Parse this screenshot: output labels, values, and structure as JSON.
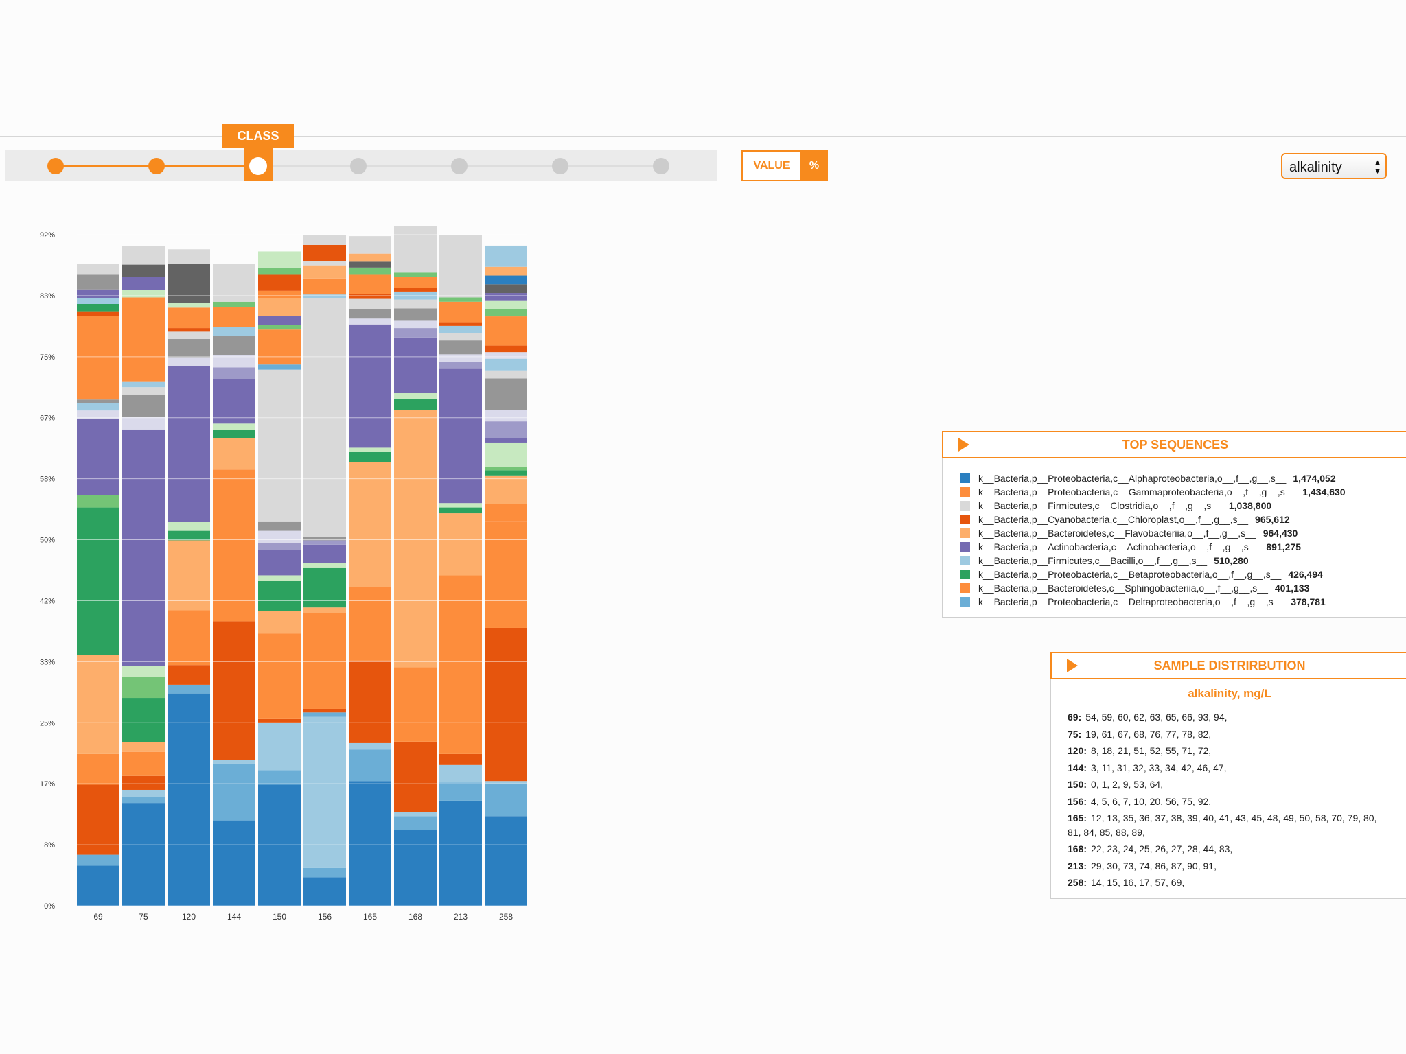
{
  "controls": {
    "class_label": "CLASS",
    "value_label": "VALUE",
    "percent_label": "%",
    "select_value": "alkalinity",
    "slider_levels": 7,
    "slider_selected_index": 2
  },
  "colors": {
    "accent": "#f78a1d",
    "dark_blue": "#2b7fc0",
    "light_blue": "#9ecae1",
    "mid_blue": "#6baed6",
    "orange": "#fd8d3c",
    "dark_orange": "#e6550d",
    "light_orange": "#fdae6b",
    "green": "#2ca25f",
    "light_green": "#74c476",
    "pale_green": "#c7e9c0",
    "purple": "#756bb1",
    "light_purple": "#9e9ac8",
    "pale_purple": "#dadaeb",
    "gray": "#969696",
    "dark_gray": "#636363",
    "light_gray": "#d9d9d9"
  },
  "chart_data": {
    "type": "bar",
    "stacked": true,
    "categories": [
      "69",
      "75",
      "120",
      "144",
      "150",
      "156",
      "165",
      "168",
      "213",
      "258"
    ],
    "y_ticks": [
      "0%",
      "8%",
      "17%",
      "25%",
      "33%",
      "42%",
      "50%",
      "58%",
      "67%",
      "75%",
      "83%",
      "92%"
    ],
    "ylim": [
      0,
      92
    ],
    "xlabel": "",
    "ylabel": "",
    "title": "",
    "gridlines": true,
    "stack_colors_bottom_to_top": "per-column segment lists (percent values)",
    "columns": [
      {
        "category": "69",
        "segments": [
          {
            "v": 5.5,
            "c": "#2b7fc0"
          },
          {
            "v": 1.5,
            "c": "#6baed6"
          },
          {
            "v": 9.6,
            "c": "#e6550d"
          },
          {
            "v": 4.2,
            "c": "#fd8d3c"
          },
          {
            "v": 13.6,
            "c": "#fdae6b"
          },
          {
            "v": 20.2,
            "c": "#2ca25f"
          },
          {
            "v": 1.7,
            "c": "#74c476"
          },
          {
            "v": 10.4,
            "c": "#756bb1"
          },
          {
            "v": 1.2,
            "c": "#dadaeb"
          },
          {
            "v": 1.0,
            "c": "#9ecae1"
          },
          {
            "v": 0.5,
            "c": "#969696"
          },
          {
            "v": 11.5,
            "c": "#fd8d3c"
          },
          {
            "v": 0.6,
            "c": "#e6550d"
          },
          {
            "v": 1.0,
            "c": "#2ca25f"
          },
          {
            "v": 0.8,
            "c": "#9ecae1"
          },
          {
            "v": 1.2,
            "c": "#756bb1"
          },
          {
            "v": 2.0,
            "c": "#969696"
          },
          {
            "v": 1.5,
            "c": "#d9d9d9"
          }
        ]
      },
      {
        "category": "75",
        "segments": [
          {
            "v": 14.1,
            "c": "#2b7fc0"
          },
          {
            "v": 0.8,
            "c": "#6baed6"
          },
          {
            "v": 1.0,
            "c": "#9ecae1"
          },
          {
            "v": 1.9,
            "c": "#e6550d"
          },
          {
            "v": 3.3,
            "c": "#fd8d3c"
          },
          {
            "v": 1.3,
            "c": "#fdae6b"
          },
          {
            "v": 6.1,
            "c": "#2ca25f"
          },
          {
            "v": 2.9,
            "c": "#74c476"
          },
          {
            "v": 1.5,
            "c": "#c7e9c0"
          },
          {
            "v": 32.4,
            "c": "#756bb1"
          },
          {
            "v": 1.7,
            "c": "#dadaeb"
          },
          {
            "v": 3.1,
            "c": "#969696"
          },
          {
            "v": 1.0,
            "c": "#d9d9d9"
          },
          {
            "v": 0.8,
            "c": "#9ecae1"
          },
          {
            "v": 11.5,
            "c": "#fd8d3c"
          },
          {
            "v": 1.0,
            "c": "#c7e9c0"
          },
          {
            "v": 1.8,
            "c": "#756bb1"
          },
          {
            "v": 1.7,
            "c": "#636363"
          },
          {
            "v": 2.5,
            "c": "#d9d9d9"
          }
        ]
      },
      {
        "category": "120",
        "segments": [
          {
            "v": 29.1,
            "c": "#2b7fc0"
          },
          {
            "v": 1.2,
            "c": "#6baed6"
          },
          {
            "v": 2.7,
            "c": "#e6550d"
          },
          {
            "v": 7.5,
            "c": "#fd8d3c"
          },
          {
            "v": 9.6,
            "c": "#fdae6b"
          },
          {
            "v": 1.3,
            "c": "#2ca25f"
          },
          {
            "v": 1.2,
            "c": "#c7e9c0"
          },
          {
            "v": 21.4,
            "c": "#756bb1"
          },
          {
            "v": 1.2,
            "c": "#dadaeb"
          },
          {
            "v": 2.5,
            "c": "#969696"
          },
          {
            "v": 1.0,
            "c": "#d9d9d9"
          },
          {
            "v": 0.5,
            "c": "#e6550d"
          },
          {
            "v": 2.8,
            "c": "#fd8d3c"
          },
          {
            "v": 0.6,
            "c": "#c7e9c0"
          },
          {
            "v": 5.4,
            "c": "#636363"
          },
          {
            "v": 2.0,
            "c": "#d9d9d9"
          }
        ]
      },
      {
        "category": "144",
        "segments": [
          {
            "v": 11.7,
            "c": "#2b7fc0"
          },
          {
            "v": 7.8,
            "c": "#6baed6"
          },
          {
            "v": 0.5,
            "c": "#9ecae1"
          },
          {
            "v": 19.0,
            "c": "#e6550d"
          },
          {
            "v": 20.8,
            "c": "#fd8d3c"
          },
          {
            "v": 4.3,
            "c": "#fdae6b"
          },
          {
            "v": 1.1,
            "c": "#2ca25f"
          },
          {
            "v": 0.9,
            "c": "#c7e9c0"
          },
          {
            "v": 6.1,
            "c": "#756bb1"
          },
          {
            "v": 1.6,
            "c": "#9e9ac8"
          },
          {
            "v": 1.7,
            "c": "#dadaeb"
          },
          {
            "v": 2.6,
            "c": "#969696"
          },
          {
            "v": 1.2,
            "c": "#9ecae1"
          },
          {
            "v": 2.8,
            "c": "#fd8d3c"
          },
          {
            "v": 0.7,
            "c": "#74c476"
          },
          {
            "v": 5.2,
            "c": "#d9d9d9"
          }
        ]
      },
      {
        "category": "150",
        "segments": [
          {
            "v": 16.6,
            "c": "#2b7fc0"
          },
          {
            "v": 2.0,
            "c": "#6baed6"
          },
          {
            "v": 6.5,
            "c": "#9ecae1"
          },
          {
            "v": 0.5,
            "c": "#e6550d"
          },
          {
            "v": 11.7,
            "c": "#fd8d3c"
          },
          {
            "v": 3.1,
            "c": "#fdae6b"
          },
          {
            "v": 4.1,
            "c": "#2ca25f"
          },
          {
            "v": 0.8,
            "c": "#c7e9c0"
          },
          {
            "v": 3.5,
            "c": "#756bb1"
          },
          {
            "v": 0.9,
            "c": "#9e9ac8"
          },
          {
            "v": 1.7,
            "c": "#dadaeb"
          },
          {
            "v": 1.3,
            "c": "#969696"
          },
          {
            "v": 20.8,
            "c": "#d9d9d9"
          },
          {
            "v": 0.7,
            "c": "#6baed6"
          },
          {
            "v": 4.8,
            "c": "#fd8d3c"
          },
          {
            "v": 0.6,
            "c": "#74c476"
          },
          {
            "v": 1.3,
            "c": "#756bb1"
          },
          {
            "v": 2.4,
            "c": "#fdae6b"
          },
          {
            "v": 1.0,
            "c": "#fd8d3c"
          },
          {
            "v": 2.2,
            "c": "#e6550d"
          },
          {
            "v": 1.0,
            "c": "#74c476"
          },
          {
            "v": 2.2,
            "c": "#c7e9c0"
          }
        ]
      },
      {
        "category": "156",
        "segments": [
          {
            "v": 3.9,
            "c": "#2b7fc0"
          },
          {
            "v": 1.3,
            "c": "#6baed6"
          },
          {
            "v": 20.7,
            "c": "#9ecae1"
          },
          {
            "v": 0.6,
            "c": "#6baed6"
          },
          {
            "v": 0.5,
            "c": "#e6550d"
          },
          {
            "v": 13.1,
            "c": "#fd8d3c"
          },
          {
            "v": 0.8,
            "c": "#fdae6b"
          },
          {
            "v": 5.4,
            "c": "#2ca25f"
          },
          {
            "v": 0.7,
            "c": "#c7e9c0"
          },
          {
            "v": 2.5,
            "c": "#756bb1"
          },
          {
            "v": 0.6,
            "c": "#9e9ac8"
          },
          {
            "v": 0.5,
            "c": "#969696"
          },
          {
            "v": 32.7,
            "c": "#d9d9d9"
          },
          {
            "v": 0.5,
            "c": "#9ecae1"
          },
          {
            "v": 2.2,
            "c": "#fd8d3c"
          },
          {
            "v": 1.8,
            "c": "#fdae6b"
          },
          {
            "v": 0.6,
            "c": "#d9d9d9"
          },
          {
            "v": 2.2,
            "c": "#e6550d"
          },
          {
            "v": 1.4,
            "c": "#d9d9d9"
          }
        ]
      },
      {
        "category": "165",
        "segments": [
          {
            "v": 17.1,
            "c": "#2b7fc0"
          },
          {
            "v": 4.3,
            "c": "#6baed6"
          },
          {
            "v": 0.9,
            "c": "#9ecae1"
          },
          {
            "v": 11.3,
            "c": "#e6550d"
          },
          {
            "v": 10.1,
            "c": "#fd8d3c"
          },
          {
            "v": 17.1,
            "c": "#fdae6b"
          },
          {
            "v": 1.4,
            "c": "#2ca25f"
          },
          {
            "v": 0.6,
            "c": "#c7e9c0"
          },
          {
            "v": 16.9,
            "c": "#756bb1"
          },
          {
            "v": 0.8,
            "c": "#dadaeb"
          },
          {
            "v": 1.3,
            "c": "#969696"
          },
          {
            "v": 1.4,
            "c": "#d9d9d9"
          },
          {
            "v": 0.7,
            "c": "#e6550d"
          },
          {
            "v": 2.6,
            "c": "#fd8d3c"
          },
          {
            "v": 1.0,
            "c": "#74c476"
          },
          {
            "v": 0.8,
            "c": "#636363"
          },
          {
            "v": 1.1,
            "c": "#fdae6b"
          },
          {
            "v": 2.4,
            "c": "#d9d9d9"
          }
        ]
      },
      {
        "category": "168",
        "segments": [
          {
            "v": 10.4,
            "c": "#2b7fc0"
          },
          {
            "v": 1.9,
            "c": "#6baed6"
          },
          {
            "v": 0.5,
            "c": "#9ecae1"
          },
          {
            "v": 9.7,
            "c": "#e6550d"
          },
          {
            "v": 10.2,
            "c": "#fd8d3c"
          },
          {
            "v": 35.3,
            "c": "#fdae6b"
          },
          {
            "v": 1.5,
            "c": "#2ca25f"
          },
          {
            "v": 0.8,
            "c": "#c7e9c0"
          },
          {
            "v": 7.6,
            "c": "#756bb1"
          },
          {
            "v": 1.3,
            "c": "#9e9ac8"
          },
          {
            "v": 1.0,
            "c": "#dadaeb"
          },
          {
            "v": 1.7,
            "c": "#969696"
          },
          {
            "v": 1.2,
            "c": "#d9d9d9"
          },
          {
            "v": 1.1,
            "c": "#9ecae1"
          },
          {
            "v": 0.5,
            "c": "#e6550d"
          },
          {
            "v": 1.5,
            "c": "#fd8d3c"
          },
          {
            "v": 0.6,
            "c": "#74c476"
          },
          {
            "v": 6.5,
            "c": "#d9d9d9"
          }
        ]
      },
      {
        "category": "213",
        "segments": [
          {
            "v": 14.4,
            "c": "#2b7fc0"
          },
          {
            "v": 2.5,
            "c": "#6baed6"
          },
          {
            "v": 2.4,
            "c": "#9ecae1"
          },
          {
            "v": 1.5,
            "c": "#e6550d"
          },
          {
            "v": 24.5,
            "c": "#fd8d3c"
          },
          {
            "v": 8.5,
            "c": "#fdae6b"
          },
          {
            "v": 0.8,
            "c": "#2ca25f"
          },
          {
            "v": 0.6,
            "c": "#c7e9c0"
          },
          {
            "v": 18.4,
            "c": "#756bb1"
          },
          {
            "v": 1.0,
            "c": "#9e9ac8"
          },
          {
            "v": 1.0,
            "c": "#dadaeb"
          },
          {
            "v": 1.9,
            "c": "#969696"
          },
          {
            "v": 1.0,
            "c": "#d9d9d9"
          },
          {
            "v": 1.0,
            "c": "#9ecae1"
          },
          {
            "v": 0.5,
            "c": "#e6550d"
          },
          {
            "v": 2.8,
            "c": "#fd8d3c"
          },
          {
            "v": 0.6,
            "c": "#74c476"
          },
          {
            "v": 8.6,
            "c": "#d9d9d9"
          }
        ]
      },
      {
        "category": "258",
        "segments": [
          {
            "v": 12.3,
            "c": "#2b7fc0"
          },
          {
            "v": 4.4,
            "c": "#6baed6"
          },
          {
            "v": 0.4,
            "c": "#9ecae1"
          },
          {
            "v": 21.0,
            "c": "#e6550d"
          },
          {
            "v": 14.6,
            "c": "#fd8d3c"
          },
          {
            "v": 2.4,
            "c": "#fd8d3c"
          },
          {
            "v": 3.9,
            "c": "#fdae6b"
          },
          {
            "v": 0.7,
            "c": "#2ca25f"
          },
          {
            "v": 0.5,
            "c": "#74c476"
          },
          {
            "v": 3.3,
            "c": "#c7e9c0"
          },
          {
            "v": 0.6,
            "c": "#756bb1"
          },
          {
            "v": 2.3,
            "c": "#9e9ac8"
          },
          {
            "v": 1.6,
            "c": "#dadaeb"
          },
          {
            "v": 4.3,
            "c": "#969696"
          },
          {
            "v": 1.1,
            "c": "#d9d9d9"
          },
          {
            "v": 1.6,
            "c": "#9ecae1"
          },
          {
            "v": 0.9,
            "c": "#dadaeb"
          },
          {
            "v": 0.9,
            "c": "#e6550d"
          },
          {
            "v": 4.0,
            "c": "#fd8d3c"
          },
          {
            "v": 1.0,
            "c": "#74c476"
          },
          {
            "v": 1.2,
            "c": "#c7e9c0"
          },
          {
            "v": 1.0,
            "c": "#756bb1"
          },
          {
            "v": 1.2,
            "c": "#636363"
          },
          {
            "v": 1.2,
            "c": "#2b7fc0"
          },
          {
            "v": 1.2,
            "c": "#fdae6b"
          },
          {
            "v": 2.9,
            "c": "#9ecae1"
          }
        ]
      }
    ]
  },
  "top_sequences": {
    "title": "TOP SEQUENCES",
    "items": [
      {
        "label": "k__Bacteria,p__Proteobacteria,c__Alphaproteobacteria,o__,f__,g__,s__",
        "count": "1,474,052",
        "color": "#2b7fc0"
      },
      {
        "label": "k__Bacteria,p__Proteobacteria,c__Gammaproteobacteria,o__,f__,g__,s__",
        "count": "1,434,630",
        "color": "#fd8d3c"
      },
      {
        "label": "k__Bacteria,p__Firmicutes,c__Clostridia,o__,f__,g__,s__",
        "count": "1,038,800",
        "color": "#d9d9d9"
      },
      {
        "label": "k__Bacteria,p__Cyanobacteria,c__Chloroplast,o__,f__,g__,s__",
        "count": "965,612",
        "color": "#e6550d"
      },
      {
        "label": "k__Bacteria,p__Bacteroidetes,c__Flavobacteriia,o__,f__,g__,s__",
        "count": "964,430",
        "color": "#fdae6b"
      },
      {
        "label": "k__Bacteria,p__Actinobacteria,c__Actinobacteria,o__,f__,g__,s__",
        "count": "891,275",
        "color": "#756bb1"
      },
      {
        "label": "k__Bacteria,p__Firmicutes,c__Bacilli,o__,f__,g__,s__",
        "count": "510,280",
        "color": "#9ecae1"
      },
      {
        "label": "k__Bacteria,p__Proteobacteria,c__Betaproteobacteria,o__,f__,g__,s__",
        "count": "426,494",
        "color": "#2ca25f"
      },
      {
        "label": "k__Bacteria,p__Bacteroidetes,c__Sphingobacteriia,o__,f__,g__,s__",
        "count": "401,133",
        "color": "#fd8d3c"
      },
      {
        "label": "k__Bacteria,p__Proteobacteria,c__Deltaproteobacteria,o__,f__,g__,s__",
        "count": "378,781",
        "color": "#6baed6"
      }
    ]
  },
  "sample_distribution": {
    "title": "SAMPLE DISTRIRBUTION",
    "subtitle": "alkalinity, mg/L",
    "rows": [
      {
        "key": "69:",
        "values": "54, 59, 60, 62, 63, 65, 66, 93, 94,"
      },
      {
        "key": "75:",
        "values": "19, 61, 67, 68, 76, 77, 78, 82,"
      },
      {
        "key": "120:",
        "values": "8, 18, 21, 51, 52, 55, 71, 72,"
      },
      {
        "key": "144:",
        "values": "3, 11, 31, 32, 33, 34, 42, 46, 47,"
      },
      {
        "key": "150:",
        "values": "0, 1, 2, 9, 53, 64,"
      },
      {
        "key": "156:",
        "values": "4, 5, 6, 7, 10, 20, 56, 75, 92,"
      },
      {
        "key": "165:",
        "values": "12, 13, 35, 36, 37, 38, 39, 40, 41, 43, 45, 48, 49, 50, 58, 70, 79, 80, 81, 84, 85, 88, 89,"
      },
      {
        "key": "168:",
        "values": "22, 23, 24, 25, 26, 27, 28, 44, 83,"
      },
      {
        "key": "213:",
        "values": "29, 30, 73, 74, 86, 87, 90, 91,"
      },
      {
        "key": "258:",
        "values": "14, 15, 16, 17, 57, 69,"
      }
    ]
  }
}
